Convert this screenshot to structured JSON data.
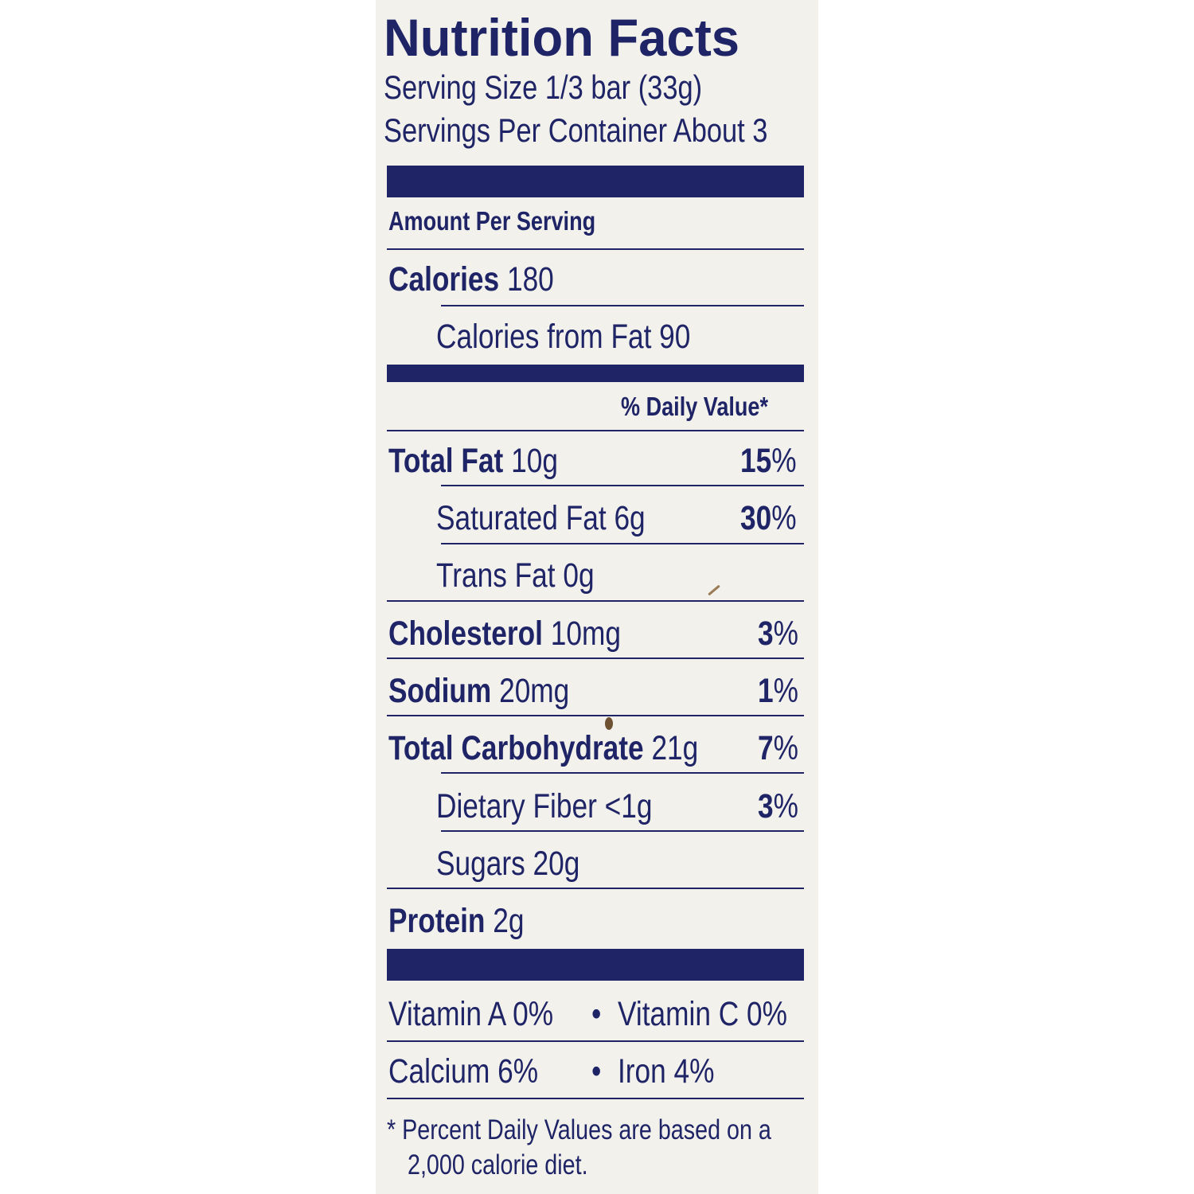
{
  "label": {
    "title": "Nutrition Facts",
    "serving_size": "Serving Size 1/3 bar (33g)",
    "servings_per_container": "Servings Per Container About 3",
    "amount_per_serving": "Amount Per Serving",
    "calories_label": "Calories",
    "calories_value": "180",
    "calories_from_fat": "Calories from Fat 90",
    "daily_value_header": "% Daily Value*",
    "nutrients": [
      {
        "name": "Total Fat",
        "amount": "10g",
        "dv": "15",
        "pct": "%"
      },
      {
        "name": "Saturated Fat",
        "amount": "6g",
        "dv": "30",
        "pct": "%"
      },
      {
        "name": "Trans Fat",
        "amount": "0g"
      },
      {
        "name": "Cholesterol",
        "amount": "10mg",
        "dv": "3",
        "pct": "%"
      },
      {
        "name": "Sodium",
        "amount": "20mg",
        "dv": "1",
        "pct": "%"
      },
      {
        "name": "Total Carbohydrate",
        "amount": "21g",
        "dv": "7",
        "pct": "%"
      },
      {
        "name": "Dietary Fiber",
        "amount": "<1g",
        "dv": "3",
        "pct": "%"
      },
      {
        "name": "Sugars",
        "amount": "20g"
      },
      {
        "name": "Protein",
        "amount": "2g"
      }
    ],
    "vitamins": {
      "row1_left": "Vitamin A 0%",
      "row1_right": "Vitamin C 0%",
      "row2_left": "Calcium 6%",
      "row2_right": "Iron 4%",
      "bullet": "•"
    },
    "footnote_line1": "* Percent Daily Values are based on a",
    "footnote_line2": "2,000 calorie diet."
  },
  "colors": {
    "ink": "#1f2466",
    "panel": "#f2f1ec",
    "background": "#ffffff"
  }
}
